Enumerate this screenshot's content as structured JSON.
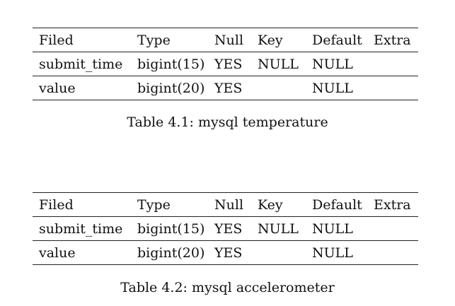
{
  "tables": [
    {
      "headers": [
        "Filed",
        "Type",
        "Null",
        "Key",
        "Default",
        "Extra"
      ],
      "rows": [
        [
          "submit_time",
          "bigint(15)",
          "YES",
          "NULL",
          "NULL",
          ""
        ],
        [
          "value",
          "bigint(20)",
          "YES",
          "",
          "NULL",
          ""
        ]
      ],
      "caption": "Table 4.1: mysql temperature"
    },
    {
      "headers": [
        "Filed",
        "Type",
        "Null",
        "Key",
        "Default",
        "Extra"
      ],
      "rows": [
        [
          "submit_time",
          "bigint(15)",
          "YES",
          "NULL",
          "NULL",
          ""
        ],
        [
          "value",
          "bigint(20)",
          "YES",
          "",
          "NULL",
          ""
        ]
      ],
      "caption": "Table 4.2: mysql accelerometer"
    }
  ]
}
